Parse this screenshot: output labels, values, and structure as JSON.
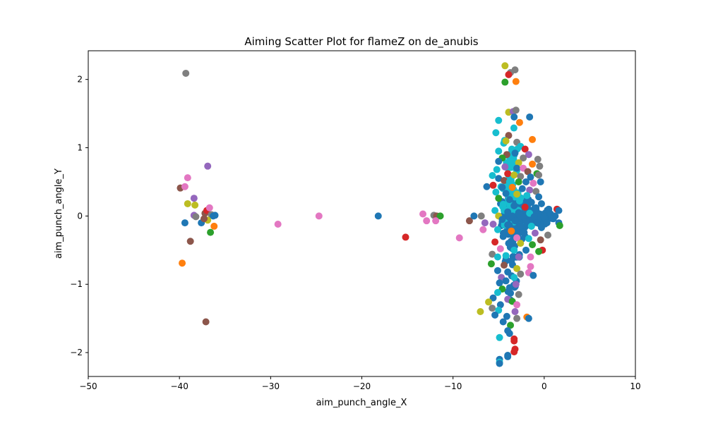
{
  "chart_data": {
    "type": "scatter",
    "title": "Aiming Scatter Plot for flameZ on de_anubis",
    "xlabel": "aim_punch_angle_X",
    "ylabel": "aim_punch_angle_Y",
    "xlim": [
      -50,
      10
    ],
    "ylim": [
      -2.35,
      2.42
    ],
    "xticks": [
      -50,
      -40,
      -30,
      -20,
      -10,
      0,
      10
    ],
    "xtick_labels": [
      "−50",
      "−40",
      "−30",
      "−20",
      "−10",
      "0",
      "10"
    ],
    "yticks": [
      -2,
      -1,
      0,
      1,
      2
    ],
    "ytick_labels": [
      "−2",
      "−1",
      "0",
      "1",
      "2"
    ],
    "grid": false,
    "legend": "none",
    "palette": [
      "#1f77b4",
      "#ff7f0e",
      "#2ca02c",
      "#d62728",
      "#9467bd",
      "#8c564b",
      "#e377c2",
      "#7f7f7f",
      "#bcbd22",
      "#17becf"
    ],
    "points": [
      {
        "x": -39.3,
        "y": 2.09,
        "color": "#7f7f7f"
      },
      {
        "x": -36.9,
        "y": 0.73,
        "color": "#9467bd"
      },
      {
        "x": -39.1,
        "y": 0.56,
        "color": "#e377c2"
      },
      {
        "x": -39.9,
        "y": 0.41,
        "color": "#8c564b"
      },
      {
        "x": -39.4,
        "y": 0.43,
        "color": "#e377c2"
      },
      {
        "x": -38.4,
        "y": 0.26,
        "color": "#9467bd"
      },
      {
        "x": -39.1,
        "y": 0.18,
        "color": "#bcbd22"
      },
      {
        "x": -38.3,
        "y": 0.16,
        "color": "#bcbd22"
      },
      {
        "x": -38.4,
        "y": 0.01,
        "color": "#9467bd"
      },
      {
        "x": -38.2,
        "y": -0.01,
        "color": "#7f7f7f"
      },
      {
        "x": -39.4,
        "y": -0.1,
        "color": "#1f77b4"
      },
      {
        "x": -37.6,
        "y": -0.1,
        "color": "#1f77b4"
      },
      {
        "x": -37.2,
        "y": 0.04,
        "color": "#8c564b"
      },
      {
        "x": -37.0,
        "y": 0.08,
        "color": "#d62728"
      },
      {
        "x": -36.7,
        "y": 0.12,
        "color": "#e377c2"
      },
      {
        "x": -36.5,
        "y": 0.02,
        "color": "#7f7f7f"
      },
      {
        "x": -36.3,
        "y": 0.0,
        "color": "#1f77b4"
      },
      {
        "x": -36.1,
        "y": 0.01,
        "color": "#1f77b4"
      },
      {
        "x": -36.9,
        "y": -0.06,
        "color": "#bcbd22"
      },
      {
        "x": -37.3,
        "y": -0.04,
        "color": "#8c564b"
      },
      {
        "x": -36.2,
        "y": -0.15,
        "color": "#ff7f0e"
      },
      {
        "x": -36.6,
        "y": -0.24,
        "color": "#2ca02c"
      },
      {
        "x": -38.8,
        "y": -0.37,
        "color": "#8c564b"
      },
      {
        "x": -39.7,
        "y": -0.69,
        "color": "#ff7f0e"
      },
      {
        "x": -37.1,
        "y": -1.55,
        "color": "#8c564b"
      },
      {
        "x": -29.2,
        "y": -0.12,
        "color": "#e377c2"
      },
      {
        "x": -24.7,
        "y": 0.0,
        "color": "#e377c2"
      },
      {
        "x": -18.2,
        "y": 0.0,
        "color": "#1f77b4"
      },
      {
        "x": -15.2,
        "y": -0.31,
        "color": "#d62728"
      },
      {
        "x": -13.3,
        "y": 0.03,
        "color": "#e377c2"
      },
      {
        "x": -12.9,
        "y": -0.07,
        "color": "#e377c2"
      },
      {
        "x": -12.1,
        "y": 0.01,
        "color": "#7f7f7f"
      },
      {
        "x": -11.8,
        "y": 0.0,
        "color": "#8c564b"
      },
      {
        "x": -11.4,
        "y": 0.0,
        "color": "#2ca02c"
      },
      {
        "x": -11.9,
        "y": -0.07,
        "color": "#e377c2"
      },
      {
        "x": -9.3,
        "y": -0.32,
        "color": "#e377c2"
      },
      {
        "x": -8.2,
        "y": -0.07,
        "color": "#8c564b"
      },
      {
        "x": -7.7,
        "y": 0.0,
        "color": "#1f77b4"
      },
      {
        "x": -6.9,
        "y": 0.0,
        "color": "#7f7f7f"
      },
      {
        "x": -6.5,
        "y": -0.1,
        "color": "#9467bd"
      },
      {
        "x": -6.7,
        "y": -0.2,
        "color": "#e377c2"
      },
      {
        "x": -7.0,
        "y": -1.4,
        "color": "#bcbd22"
      },
      {
        "x": -6.3,
        "y": 0.43,
        "color": "#1f77b4"
      },
      {
        "x": -4.3,
        "y": 2.2,
        "color": "#bcbd22"
      },
      {
        "x": -3.7,
        "y": 2.1,
        "color": "#7f7f7f"
      },
      {
        "x": -3.2,
        "y": 2.14,
        "color": "#7f7f7f"
      },
      {
        "x": -3.9,
        "y": 2.07,
        "color": "#d62728"
      },
      {
        "x": -3.1,
        "y": 1.97,
        "color": "#ff7f0e"
      },
      {
        "x": -4.3,
        "y": 1.96,
        "color": "#2ca02c"
      },
      {
        "x": -3.9,
        "y": 1.52,
        "color": "#bcbd22"
      },
      {
        "x": -3.4,
        "y": 1.53,
        "color": "#9467bd"
      },
      {
        "x": -3.1,
        "y": 1.55,
        "color": "#7f7f7f"
      },
      {
        "x": -3.3,
        "y": 1.45,
        "color": "#1f77b4"
      },
      {
        "x": -1.6,
        "y": 1.45,
        "color": "#1f77b4"
      },
      {
        "x": -5.0,
        "y": 1.4,
        "color": "#17becf"
      },
      {
        "x": -2.7,
        "y": 1.37,
        "color": "#ff7f0e"
      },
      {
        "x": -5.3,
        "y": 1.22,
        "color": "#17becf"
      },
      {
        "x": -3.9,
        "y": 1.18,
        "color": "#8c564b"
      },
      {
        "x": -1.3,
        "y": 1.12,
        "color": "#ff7f0e"
      },
      {
        "x": -4.2,
        "y": 1.1,
        "color": "#bcbd22"
      },
      {
        "x": -3.0,
        "y": 1.08,
        "color": "#7f7f7f"
      },
      {
        "x": -2.6,
        "y": 1.02,
        "color": "#17becf"
      },
      {
        "x": -2.1,
        "y": 0.98,
        "color": "#d62728"
      },
      {
        "x": -5.0,
        "y": 0.95,
        "color": "#17becf"
      },
      {
        "x": -4.1,
        "y": 0.9,
        "color": "#8c564b"
      },
      {
        "x": -3.2,
        "y": 0.92,
        "color": "#1f77b4"
      },
      {
        "x": -1.7,
        "y": 0.9,
        "color": "#9467bd"
      },
      {
        "x": -4.6,
        "y": 0.85,
        "color": "#2ca02c"
      },
      {
        "x": -2.3,
        "y": 0.85,
        "color": "#7f7f7f"
      },
      {
        "x": -0.7,
        "y": 0.83,
        "color": "#7f7f7f"
      },
      {
        "x": -5.0,
        "y": 0.8,
        "color": "#1f77b4"
      },
      {
        "x": -3.6,
        "y": 0.8,
        "color": "#17becf"
      },
      {
        "x": -2.8,
        "y": 0.78,
        "color": "#bcbd22"
      },
      {
        "x": -1.3,
        "y": 0.76,
        "color": "#ff7f0e"
      },
      {
        "x": -0.5,
        "y": 0.73,
        "color": "#7f7f7f"
      },
      {
        "x": -4.3,
        "y": 0.72,
        "color": "#9467bd"
      },
      {
        "x": -3.0,
        "y": 0.7,
        "color": "#1f77b4"
      },
      {
        "x": -2.3,
        "y": 0.7,
        "color": "#e377c2"
      },
      {
        "x": -5.2,
        "y": 0.68,
        "color": "#17becf"
      },
      {
        "x": -1.8,
        "y": 0.65,
        "color": "#8c564b"
      },
      {
        "x": -0.8,
        "y": 0.62,
        "color": "#2ca02c"
      },
      {
        "x": -4.0,
        "y": 0.62,
        "color": "#d62728"
      },
      {
        "x": -3.3,
        "y": 0.6,
        "color": "#bcbd22"
      },
      {
        "x": -2.6,
        "y": 0.58,
        "color": "#7f7f7f"
      },
      {
        "x": -1.5,
        "y": 0.57,
        "color": "#1f77b4"
      },
      {
        "x": -0.6,
        "y": 0.6,
        "color": "#7f7f7f"
      },
      {
        "x": -5.0,
        "y": 0.55,
        "color": "#1f77b4"
      },
      {
        "x": -4.4,
        "y": 0.52,
        "color": "#8c564b"
      },
      {
        "x": -3.8,
        "y": 0.5,
        "color": "#17becf"
      },
      {
        "x": -2.8,
        "y": 0.5,
        "color": "#2ca02c"
      },
      {
        "x": -2.0,
        "y": 0.5,
        "color": "#1f77b4"
      },
      {
        "x": -1.2,
        "y": 0.48,
        "color": "#e377c2"
      },
      {
        "x": -0.4,
        "y": 0.5,
        "color": "#1f77b4"
      },
      {
        "x": -5.6,
        "y": 0.45,
        "color": "#d62728"
      },
      {
        "x": -4.6,
        "y": 0.42,
        "color": "#1f77b4"
      },
      {
        "x": -3.5,
        "y": 0.42,
        "color": "#ff7f0e"
      },
      {
        "x": -2.4,
        "y": 0.4,
        "color": "#1f77b4"
      },
      {
        "x": -1.6,
        "y": 0.38,
        "color": "#9467bd"
      },
      {
        "x": -0.9,
        "y": 0.36,
        "color": "#7f7f7f"
      },
      {
        "x": -5.3,
        "y": 0.35,
        "color": "#17becf"
      },
      {
        "x": -4.2,
        "y": 0.33,
        "color": "#1f77b4"
      },
      {
        "x": -3.0,
        "y": 0.32,
        "color": "#bcbd22"
      },
      {
        "x": -1.9,
        "y": 0.3,
        "color": "#17becf"
      },
      {
        "x": -0.6,
        "y": 0.28,
        "color": "#1f77b4"
      },
      {
        "x": -5.0,
        "y": 0.26,
        "color": "#2ca02c"
      },
      {
        "x": -3.8,
        "y": 0.24,
        "color": "#1f77b4"
      },
      {
        "x": -2.7,
        "y": 0.22,
        "color": "#17becf"
      },
      {
        "x": -1.4,
        "y": 0.2,
        "color": "#1f77b4"
      },
      {
        "x": -0.3,
        "y": 0.18,
        "color": "#1f77b4"
      },
      {
        "x": -4.5,
        "y": 0.17,
        "color": "#17becf"
      },
      {
        "x": -3.3,
        "y": 0.15,
        "color": "#1f77b4"
      },
      {
        "x": -2.1,
        "y": 0.13,
        "color": "#d62728"
      },
      {
        "x": -0.9,
        "y": 0.12,
        "color": "#1f77b4"
      },
      {
        "x": 0.5,
        "y": 0.1,
        "color": "#1f77b4"
      },
      {
        "x": 1.4,
        "y": 0.1,
        "color": "#d62728"
      },
      {
        "x": 1.6,
        "y": 0.08,
        "color": "#1f77b4"
      },
      {
        "x": -5.4,
        "y": 0.08,
        "color": "#17becf"
      },
      {
        "x": -4.0,
        "y": 0.06,
        "color": "#1f77b4"
      },
      {
        "x": -2.8,
        "y": 0.05,
        "color": "#1f77b4"
      },
      {
        "x": -1.6,
        "y": 0.04,
        "color": "#17becf"
      },
      {
        "x": -0.5,
        "y": 0.03,
        "color": "#1f77b4"
      },
      {
        "x": 0.7,
        "y": 0.03,
        "color": "#1f77b4"
      },
      {
        "x": 1.2,
        "y": 0.0,
        "color": "#1f77b4"
      },
      {
        "x": -5.0,
        "y": 0.0,
        "color": "#bcbd22"
      },
      {
        "x": -3.5,
        "y": 0.0,
        "color": "#1f77b4"
      },
      {
        "x": -2.3,
        "y": -0.01,
        "color": "#1f77b4"
      },
      {
        "x": -1.1,
        "y": -0.01,
        "color": "#1f77b4"
      },
      {
        "x": 0.0,
        "y": -0.02,
        "color": "#1f77b4"
      },
      {
        "x": 1.0,
        "y": -0.04,
        "color": "#1f77b4"
      },
      {
        "x": 1.6,
        "y": -0.1,
        "color": "#1f77b4"
      },
      {
        "x": 1.7,
        "y": -0.14,
        "color": "#2ca02c"
      },
      {
        "x": -4.6,
        "y": -0.05,
        "color": "#1f77b4"
      },
      {
        "x": -3.2,
        "y": -0.07,
        "color": "#1f77b4"
      },
      {
        "x": -2.0,
        "y": -0.08,
        "color": "#1f77b4"
      },
      {
        "x": -0.8,
        "y": -0.1,
        "color": "#1f77b4"
      },
      {
        "x": 0.3,
        "y": -0.1,
        "color": "#1f77b4"
      },
      {
        "x": -5.6,
        "y": -0.12,
        "color": "#9467bd"
      },
      {
        "x": -4.0,
        "y": -0.13,
        "color": "#1f77b4"
      },
      {
        "x": -2.6,
        "y": -0.15,
        "color": "#1f77b4"
      },
      {
        "x": -1.4,
        "y": -0.15,
        "color": "#17becf"
      },
      {
        "x": -0.3,
        "y": -0.17,
        "color": "#1f77b4"
      },
      {
        "x": -5.1,
        "y": -0.2,
        "color": "#17becf"
      },
      {
        "x": -3.6,
        "y": -0.22,
        "color": "#ff7f0e"
      },
      {
        "x": -2.2,
        "y": -0.24,
        "color": "#1f77b4"
      },
      {
        "x": -1.0,
        "y": -0.25,
        "color": "#9467bd"
      },
      {
        "x": 0.4,
        "y": -0.28,
        "color": "#7f7f7f"
      },
      {
        "x": -4.5,
        "y": -0.3,
        "color": "#1f77b4"
      },
      {
        "x": -3.0,
        "y": -0.32,
        "color": "#e377c2"
      },
      {
        "x": -1.7,
        "y": -0.33,
        "color": "#17becf"
      },
      {
        "x": -0.4,
        "y": -0.35,
        "color": "#8c564b"
      },
      {
        "x": -5.4,
        "y": -0.38,
        "color": "#d62728"
      },
      {
        "x": -3.9,
        "y": -0.4,
        "color": "#1f77b4"
      },
      {
        "x": -2.6,
        "y": -0.4,
        "color": "#bcbd22"
      },
      {
        "x": -1.3,
        "y": -0.42,
        "color": "#2ca02c"
      },
      {
        "x": -0.2,
        "y": -0.5,
        "color": "#d62728"
      },
      {
        "x": -4.8,
        "y": -0.48,
        "color": "#e377c2"
      },
      {
        "x": -3.3,
        "y": -0.5,
        "color": "#17becf"
      },
      {
        "x": -2.0,
        "y": -0.5,
        "color": "#1f77b4"
      },
      {
        "x": -0.6,
        "y": -0.52,
        "color": "#2ca02c"
      },
      {
        "x": -5.7,
        "y": -0.56,
        "color": "#7f7f7f"
      },
      {
        "x": -4.2,
        "y": -0.58,
        "color": "#17becf"
      },
      {
        "x": -2.8,
        "y": -0.6,
        "color": "#9467bd"
      },
      {
        "x": -1.5,
        "y": -0.6,
        "color": "#e377c2"
      },
      {
        "x": -5.1,
        "y": -0.6,
        "color": "#17becf"
      },
      {
        "x": -3.6,
        "y": -0.66,
        "color": "#1f77b4"
      },
      {
        "x": -5.8,
        "y": -0.7,
        "color": "#2ca02c"
      },
      {
        "x": -4.4,
        "y": -0.72,
        "color": "#8c564b"
      },
      {
        "x": -1.5,
        "y": -0.74,
        "color": "#e377c2"
      },
      {
        "x": -3.0,
        "y": -0.77,
        "color": "#bcbd22"
      },
      {
        "x": -5.1,
        "y": -0.8,
        "color": "#1f77b4"
      },
      {
        "x": -4.0,
        "y": -0.82,
        "color": "#1f77b4"
      },
      {
        "x": -2.6,
        "y": -0.85,
        "color": "#7f7f7f"
      },
      {
        "x": -1.7,
        "y": -0.83,
        "color": "#e377c2"
      },
      {
        "x": -1.2,
        "y": -0.87,
        "color": "#1f77b4"
      },
      {
        "x": -4.7,
        "y": -0.9,
        "color": "#9467bd"
      },
      {
        "x": -3.3,
        "y": -0.9,
        "color": "#17becf"
      },
      {
        "x": -4.2,
        "y": -0.95,
        "color": "#1f77b4"
      },
      {
        "x": -4.9,
        "y": -0.98,
        "color": "#1f77b4"
      },
      {
        "x": -3.1,
        "y": -1.0,
        "color": "#9467bd"
      },
      {
        "x": -3.8,
        "y": -1.05,
        "color": "#1f77b4"
      },
      {
        "x": -4.6,
        "y": -1.07,
        "color": "#2ca02c"
      },
      {
        "x": -5.1,
        "y": -1.12,
        "color": "#17becf"
      },
      {
        "x": -3.7,
        "y": -1.13,
        "color": "#1f77b4"
      },
      {
        "x": -2.8,
        "y": -1.15,
        "color": "#7f7f7f"
      },
      {
        "x": -5.6,
        "y": -1.2,
        "color": "#1f77b4"
      },
      {
        "x": -4.0,
        "y": -1.22,
        "color": "#9467bd"
      },
      {
        "x": -3.5,
        "y": -1.25,
        "color": "#2ca02c"
      },
      {
        "x": -6.1,
        "y": -1.26,
        "color": "#bcbd22"
      },
      {
        "x": -4.8,
        "y": -1.3,
        "color": "#1f77b4"
      },
      {
        "x": -3.0,
        "y": -1.3,
        "color": "#e377c2"
      },
      {
        "x": -5.7,
        "y": -1.35,
        "color": "#7f7f7f"
      },
      {
        "x": -5.0,
        "y": -1.38,
        "color": "#17becf"
      },
      {
        "x": -3.2,
        "y": -1.4,
        "color": "#9467bd"
      },
      {
        "x": -5.4,
        "y": -1.45,
        "color": "#1f77b4"
      },
      {
        "x": -4.1,
        "y": -1.47,
        "color": "#1f77b4"
      },
      {
        "x": -3.0,
        "y": -1.5,
        "color": "#7f7f7f"
      },
      {
        "x": -1.9,
        "y": -1.48,
        "color": "#ff7f0e"
      },
      {
        "x": -1.7,
        "y": -1.5,
        "color": "#1f77b4"
      },
      {
        "x": -4.5,
        "y": -1.55,
        "color": "#1f77b4"
      },
      {
        "x": -3.7,
        "y": -1.6,
        "color": "#2ca02c"
      },
      {
        "x": -4.0,
        "y": -1.68,
        "color": "#1f77b4"
      },
      {
        "x": -3.8,
        "y": -1.72,
        "color": "#1f77b4"
      },
      {
        "x": -4.9,
        "y": -1.78,
        "color": "#17becf"
      },
      {
        "x": -3.3,
        "y": -1.8,
        "color": "#d62728"
      },
      {
        "x": -3.3,
        "y": -1.83,
        "color": "#d62728"
      },
      {
        "x": -3.2,
        "y": -1.95,
        "color": "#d62728"
      },
      {
        "x": -3.3,
        "y": -1.99,
        "color": "#d62728"
      },
      {
        "x": -4.0,
        "y": -2.04,
        "color": "#1f77b4"
      },
      {
        "x": -4.0,
        "y": -2.06,
        "color": "#1f77b4"
      },
      {
        "x": -4.9,
        "y": -2.1,
        "color": "#1f77b4"
      },
      {
        "x": -4.9,
        "y": -2.14,
        "color": "#17becf"
      },
      {
        "x": -4.9,
        "y": -2.16,
        "color": "#1f77b4"
      }
    ],
    "dense_clusters": [
      {
        "cx": -3.0,
        "cy": 0.0,
        "sx": 1.3,
        "sy": 0.28,
        "color": "#1f77b4",
        "n": 160
      },
      {
        "cx": -3.8,
        "cy": 0.35,
        "sx": 0.9,
        "sy": 0.35,
        "color": "#17becf",
        "n": 40
      },
      {
        "cx": -1.0,
        "cy": -0.02,
        "sx": 1.1,
        "sy": 0.1,
        "color": "#1f77b4",
        "n": 60
      },
      {
        "cx": -3.7,
        "cy": 0.8,
        "sx": 0.7,
        "sy": 0.35,
        "color": "#17becf",
        "n": 25
      },
      {
        "cx": -3.5,
        "cy": -0.6,
        "sx": 0.8,
        "sy": 0.4,
        "color": "#1f77b4",
        "n": 25
      }
    ]
  }
}
